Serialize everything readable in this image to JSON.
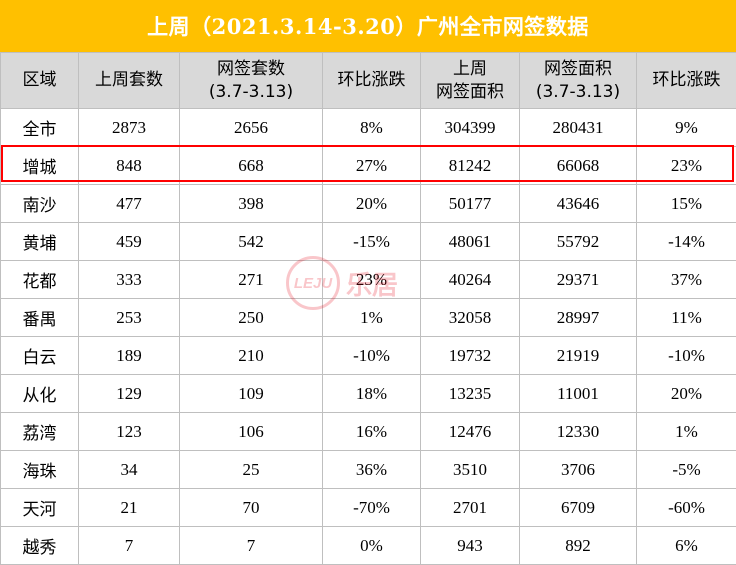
{
  "title": "上周（2021.3.14-3.20）广州全市网签数据",
  "colors": {
    "title_bg": "#ffc000",
    "header_bg": "#d9d9d9",
    "highlight": "#ff0000",
    "watermark": "#e60012"
  },
  "table": {
    "headers": [
      [
        "区域"
      ],
      [
        "上周套数"
      ],
      [
        "网签套数",
        "(3.7-3.13)"
      ],
      [
        "环比涨跌"
      ],
      [
        "上周",
        "网签面积"
      ],
      [
        "网签面积",
        "(3.7-3.13)"
      ],
      [
        "环比涨跌"
      ]
    ],
    "rows": [
      [
        "全市",
        "2873",
        "2656",
        "8%",
        "304399",
        "280431",
        "9%"
      ],
      [
        "增城",
        "848",
        "668",
        "27%",
        "81242",
        "66068",
        "23%"
      ],
      [
        "南沙",
        "477",
        "398",
        "20%",
        "50177",
        "43646",
        "15%"
      ],
      [
        "黄埔",
        "459",
        "542",
        "-15%",
        "48061",
        "55792",
        "-14%"
      ],
      [
        "花都",
        "333",
        "271",
        "23%",
        "40264",
        "29371",
        "37%"
      ],
      [
        "番禺",
        "253",
        "250",
        "1%",
        "32058",
        "28997",
        "11%"
      ],
      [
        "白云",
        "189",
        "210",
        "-10%",
        "19732",
        "21919",
        "-10%"
      ],
      [
        "从化",
        "129",
        "109",
        "18%",
        "13235",
        "11001",
        "20%"
      ],
      [
        "荔湾",
        "123",
        "106",
        "16%",
        "12476",
        "12330",
        "1%"
      ],
      [
        "海珠",
        "34",
        "25",
        "36%",
        "3510",
        "3706",
        "-5%"
      ],
      [
        "天河",
        "21",
        "70",
        "-70%",
        "2701",
        "6709",
        "-60%"
      ],
      [
        "越秀",
        "7",
        "7",
        "0%",
        "943",
        "892",
        "6%"
      ]
    ],
    "highlighted_row": "增城"
  },
  "watermark": {
    "badge": "LEJU",
    "text": "乐居"
  }
}
